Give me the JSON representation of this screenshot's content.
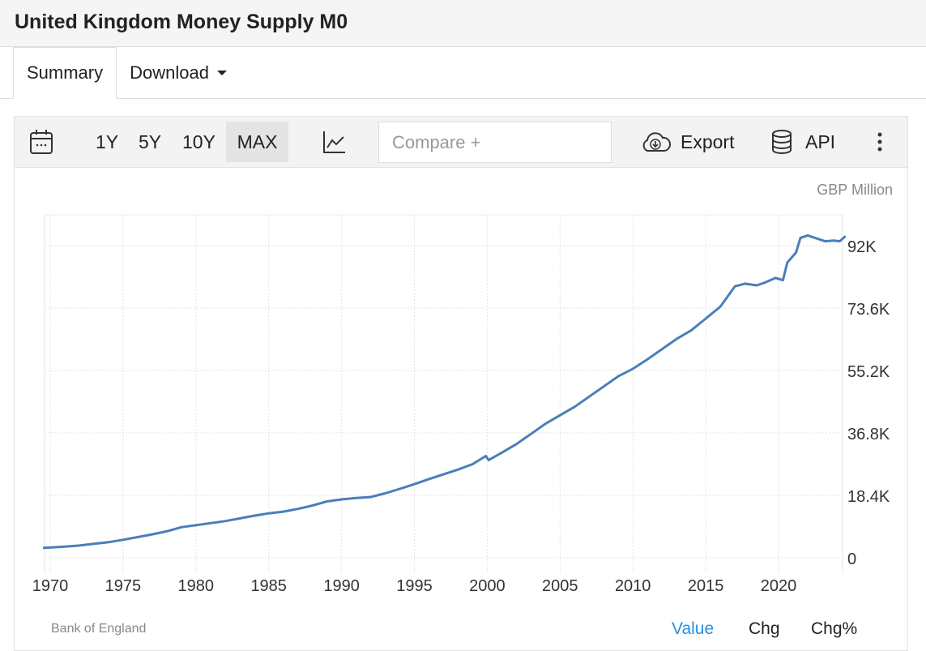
{
  "header": {
    "title": "United Kingdom Money Supply M0"
  },
  "tabs": [
    {
      "label": "Summary",
      "active": true
    },
    {
      "label": "Download",
      "active": false
    }
  ],
  "toolbar": {
    "ranges": [
      "1Y",
      "5Y",
      "10Y",
      "MAX"
    ],
    "active_range": "MAX",
    "compare_placeholder": "Compare +",
    "export_label": "Export",
    "api_label": "API",
    "icons": [
      "calendar-icon",
      "line-chart-icon",
      "cloud-download-icon",
      "database-icon",
      "more-vertical-icon"
    ]
  },
  "chart_data": {
    "type": "line",
    "unit": "GBP Million",
    "source": "Bank of England",
    "line_color": "#4a7ebb",
    "grid": true,
    "x_ticks": [
      "1970",
      "1975",
      "1980",
      "1985",
      "1990",
      "1995",
      "2000",
      "2005",
      "2010",
      "2015",
      "2020"
    ],
    "y_ticks": [
      "0",
      "18.4K",
      "36.8K",
      "55.2K",
      "73.6K",
      "92K"
    ],
    "y_tick_values": [
      0,
      18400,
      36800,
      55200,
      73600,
      92000
    ],
    "xlim": [
      1969.3,
      2024.9
    ],
    "ylim": [
      -4500,
      101000
    ],
    "series": [
      {
        "x": [
          1969.5,
          1971,
          1972,
          1973,
          1974,
          1975,
          1976,
          1977,
          1978,
          1979,
          1980,
          1981,
          1982,
          1983,
          1984,
          1985,
          1986,
          1987,
          1988,
          1989,
          1990,
          1991,
          1992,
          1993,
          1994,
          1995,
          1996,
          1997,
          1998,
          1999,
          1999.9,
          2000.1,
          2001,
          2002,
          2003,
          2004,
          2005,
          2006,
          2007,
          2008,
          2009,
          2010,
          2011,
          2012,
          2013,
          2014,
          2015,
          2016,
          2017,
          2017.7,
          2018.5,
          2019,
          2019.8,
          2020.3,
          2020.6,
          2021.2,
          2021.5,
          2022,
          2022.5,
          2023.2,
          2023.8,
          2024.2,
          2024.6
        ],
        "y": [
          2900,
          3300,
          3600,
          4100,
          4600,
          5300,
          6100,
          6900,
          7800,
          9000,
          9600,
          10200,
          10800,
          11600,
          12400,
          13100,
          13600,
          14400,
          15400,
          16600,
          17200,
          17600,
          17900,
          19000,
          20300,
          21700,
          23200,
          24600,
          26000,
          27600,
          30000,
          28800,
          31000,
          33500,
          36500,
          39500,
          42000,
          44500,
          47500,
          50500,
          53500,
          55700,
          58500,
          61500,
          64500,
          67000,
          70500,
          74000,
          80000,
          80800,
          80300,
          81000,
          82500,
          81800,
          87000,
          90000,
          94300,
          95000,
          94300,
          93300,
          93500,
          93300,
          94800
        ]
      }
    ]
  },
  "footer": {
    "views": [
      "Value",
      "Chg",
      "Chg%"
    ],
    "active_view": "Value"
  }
}
